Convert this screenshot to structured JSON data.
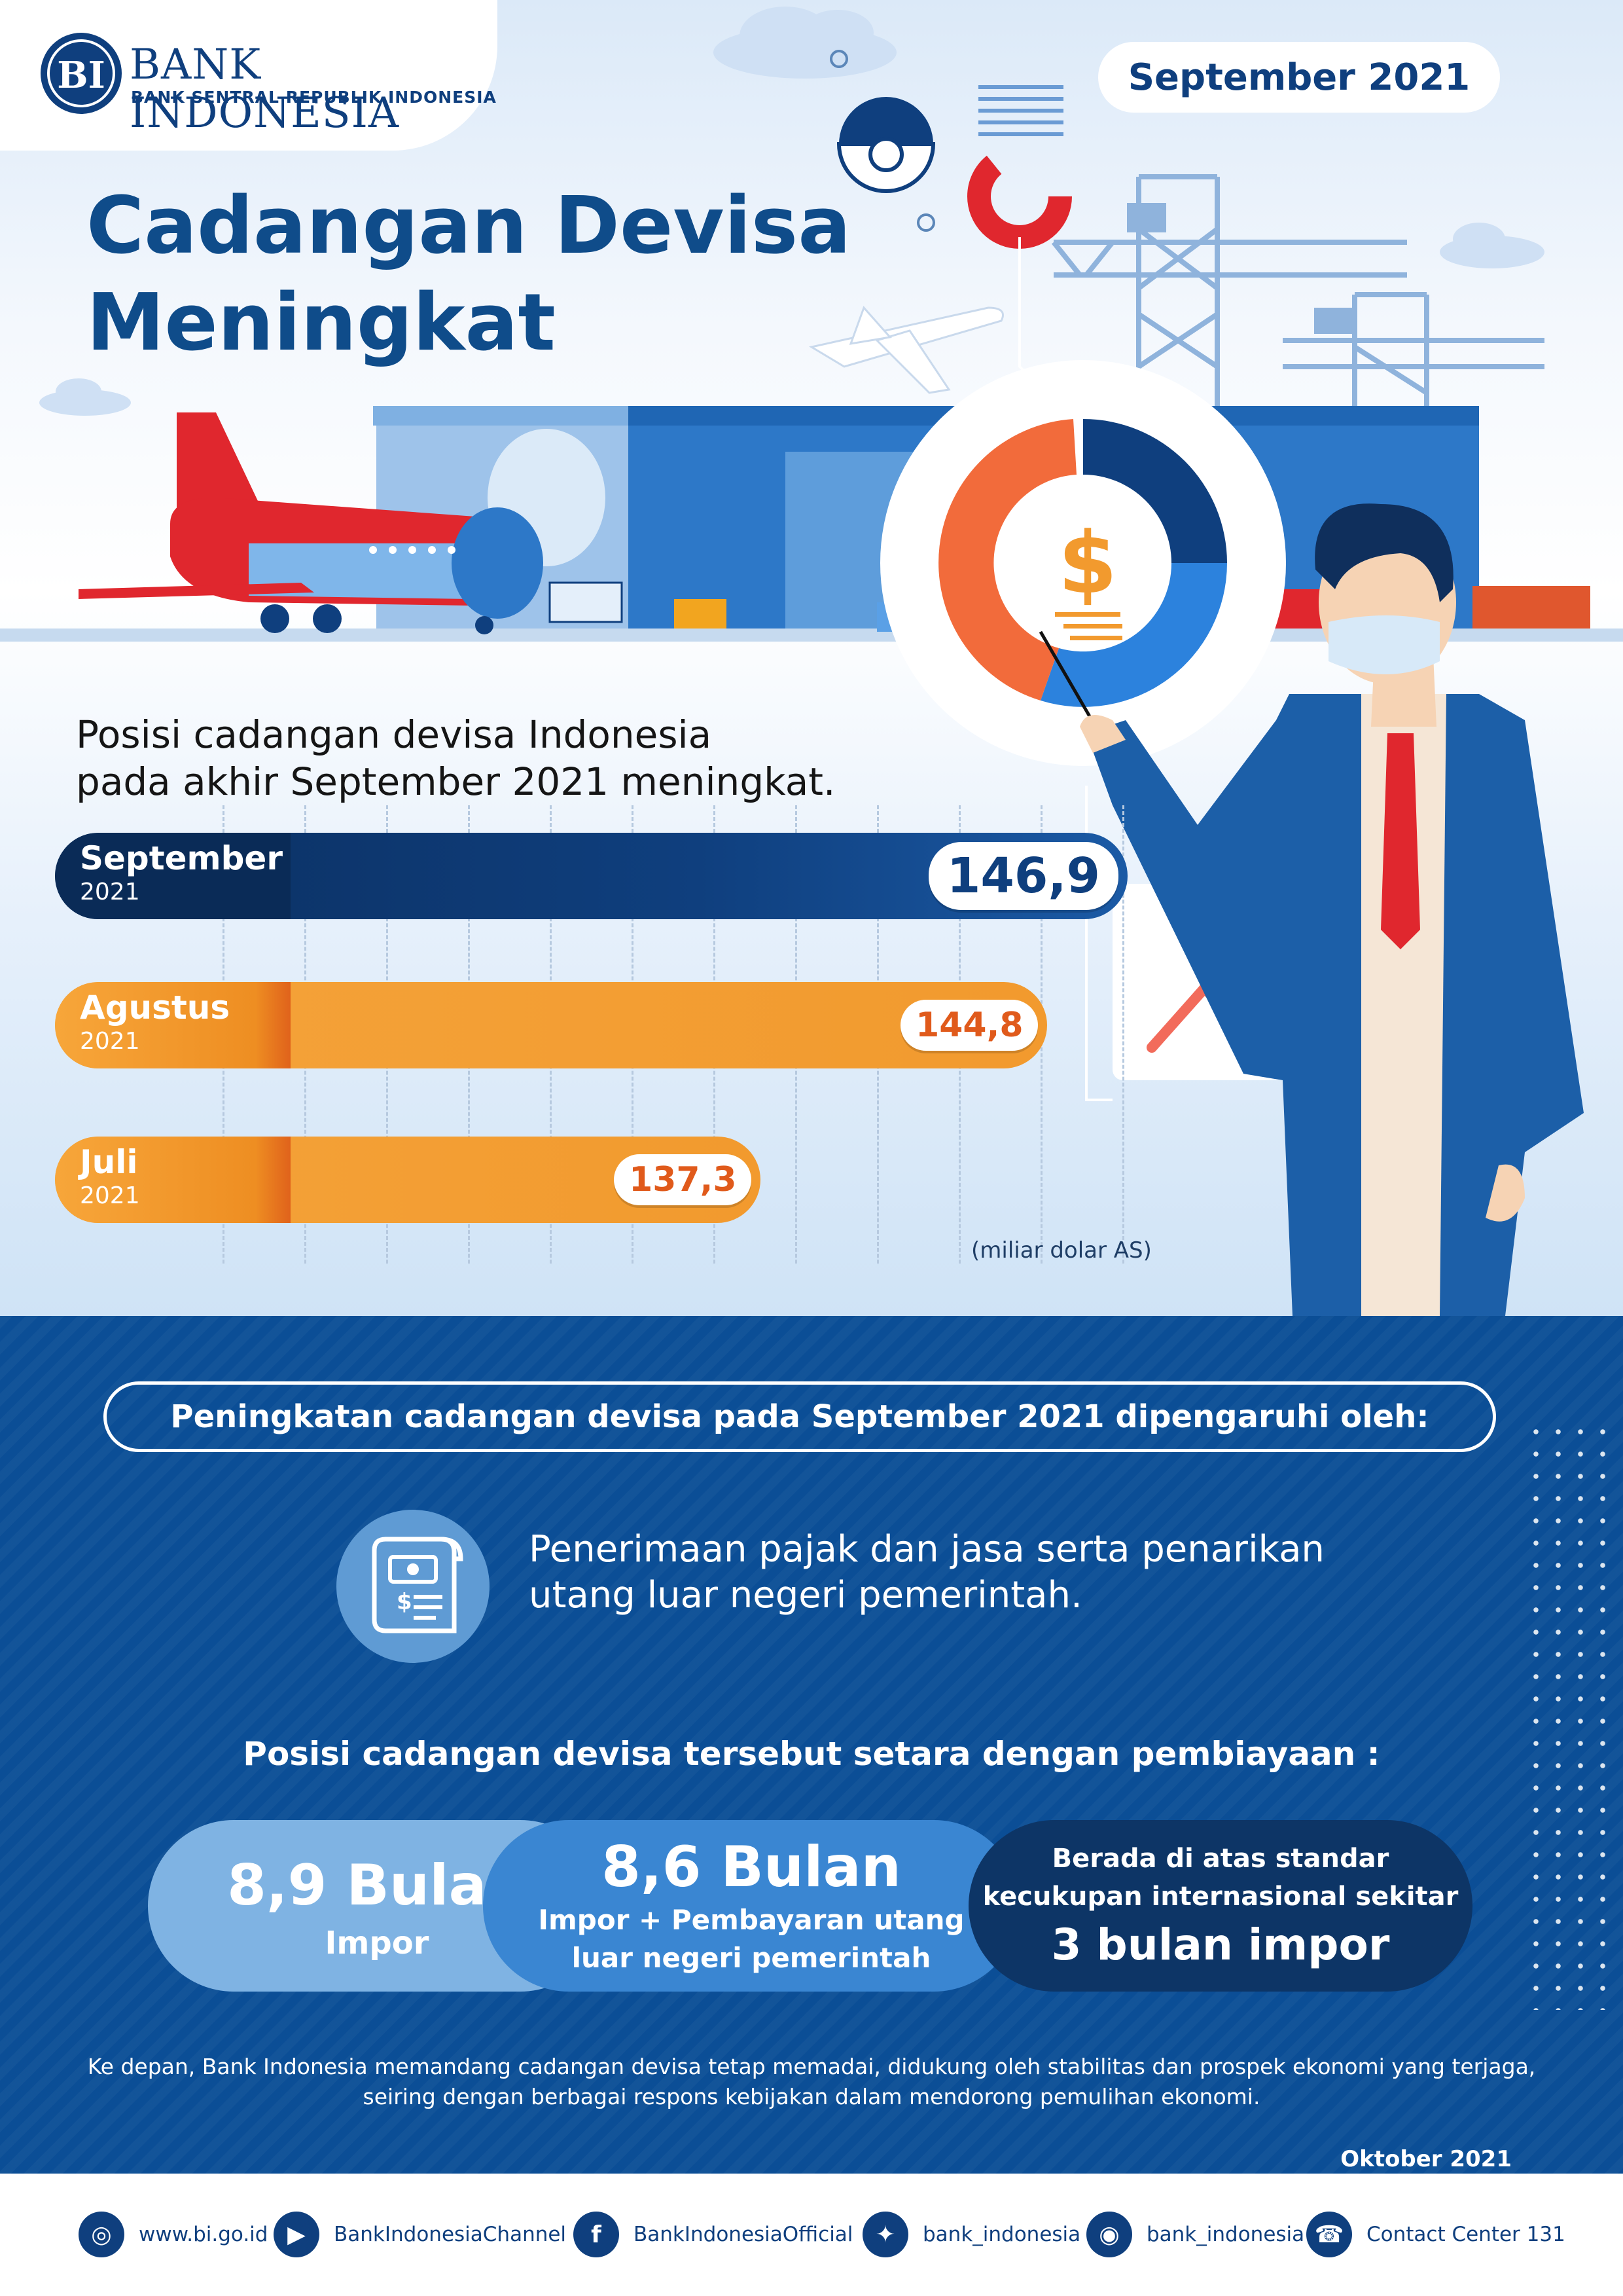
{
  "logo": {
    "name": "BANK INDONESIA",
    "subtitle": "BANK SENTRAL REPUBLIK INDONESIA"
  },
  "period": "September 2021",
  "title": {
    "line1": "Cadangan Devisa",
    "line2": "Meningkat"
  },
  "description": {
    "line1": "Posisi cadangan devisa Indonesia",
    "line2": "pada akhir September 2021 meningkat."
  },
  "chart_data": {
    "type": "bar",
    "categories": [
      "September 2021",
      "Agustus 2021",
      "Juli 2021"
    ],
    "values": [
      146.9,
      144.8,
      137.3
    ],
    "bars": [
      {
        "month": "September",
        "year": "2021",
        "value_label": "146,9",
        "color": "#0f3f7e"
      },
      {
        "month": "Agustus",
        "year": "2021",
        "value_label": "144,8",
        "color": "#f29a2e"
      },
      {
        "month": "Juli",
        "year": "2021",
        "value_label": "137,3",
        "color": "#f29a2e"
      }
    ],
    "unit_label": "(miliar dolar AS)"
  },
  "factors": {
    "heading": "Peningkatan cadangan devisa pada September 2021 dipengaruhi oleh:",
    "text_line1": "Penerimaan pajak dan jasa serta penarikan",
    "text_line2": "utang luar negeri pemerintah.",
    "icon": "tax-document-icon"
  },
  "equivalence": {
    "heading": "Posisi cadangan devisa tersebut setara dengan pembiayaan :",
    "items": [
      {
        "big": "8,9 Bulan",
        "small": "Impor"
      },
      {
        "big": "8,6 Bulan",
        "small_line1": "Impor + Pembayaran utang",
        "small_line2": "luar negeri pemerintah"
      },
      {
        "line1": "Berada di atas standar",
        "line2": "kecukupan internasional sekitar",
        "big": "3 bulan impor"
      }
    ]
  },
  "closing": {
    "line1": "Ke depan, Bank Indonesia memandang cadangan devisa tetap memadai, didukung oleh stabilitas dan prospek ekonomi yang terjaga,",
    "line2": "seiring dengan berbagai respons kebijakan dalam mendorong pemulihan ekonomi."
  },
  "release_date": "Oktober 2021",
  "footer": [
    {
      "icon": "globe-icon",
      "text": "www.bi.go.id"
    },
    {
      "icon": "youtube-icon",
      "text": "BankIndonesiaChannel"
    },
    {
      "icon": "facebook-icon",
      "text": "BankIndonesiaOfficial"
    },
    {
      "icon": "twitter-icon",
      "text": "bank_indonesia"
    },
    {
      "icon": "instagram-icon",
      "text": "bank_indonesia"
    },
    {
      "icon": "phone-icon",
      "text": "Contact Center 131"
    }
  ],
  "colors": {
    "navy": "#0f3f7e",
    "orange": "#f29a2e",
    "red": "#e0272e",
    "blue_bg": "#0b4e96"
  }
}
